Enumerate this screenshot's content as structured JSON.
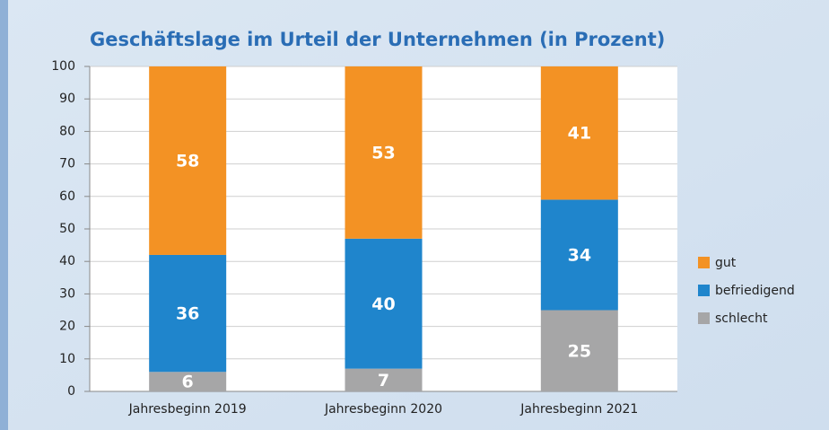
{
  "chart_data": {
    "type": "stacked_bar",
    "title": "Geschäftslage im Urteil der Unternehmen (in Prozent)",
    "categories": [
      "Jahresbeginn 2019",
      "Jahresbeginn 2020",
      "Jahresbeginn 2021"
    ],
    "series": [
      {
        "name": "schlecht",
        "color": "#a6a6a7",
        "values": [
          6,
          7,
          25
        ]
      },
      {
        "name": "befriedigend",
        "color": "#1f85cc",
        "values": [
          36,
          40,
          34
        ]
      },
      {
        "name": "gut",
        "color": "#f39224",
        "values": [
          58,
          53,
          41
        ]
      }
    ],
    "ylim": [
      0,
      100
    ],
    "yticks": [
      0,
      10,
      20,
      30,
      40,
      50,
      60,
      70,
      80,
      90,
      100
    ],
    "grid": true,
    "legend": "right"
  }
}
